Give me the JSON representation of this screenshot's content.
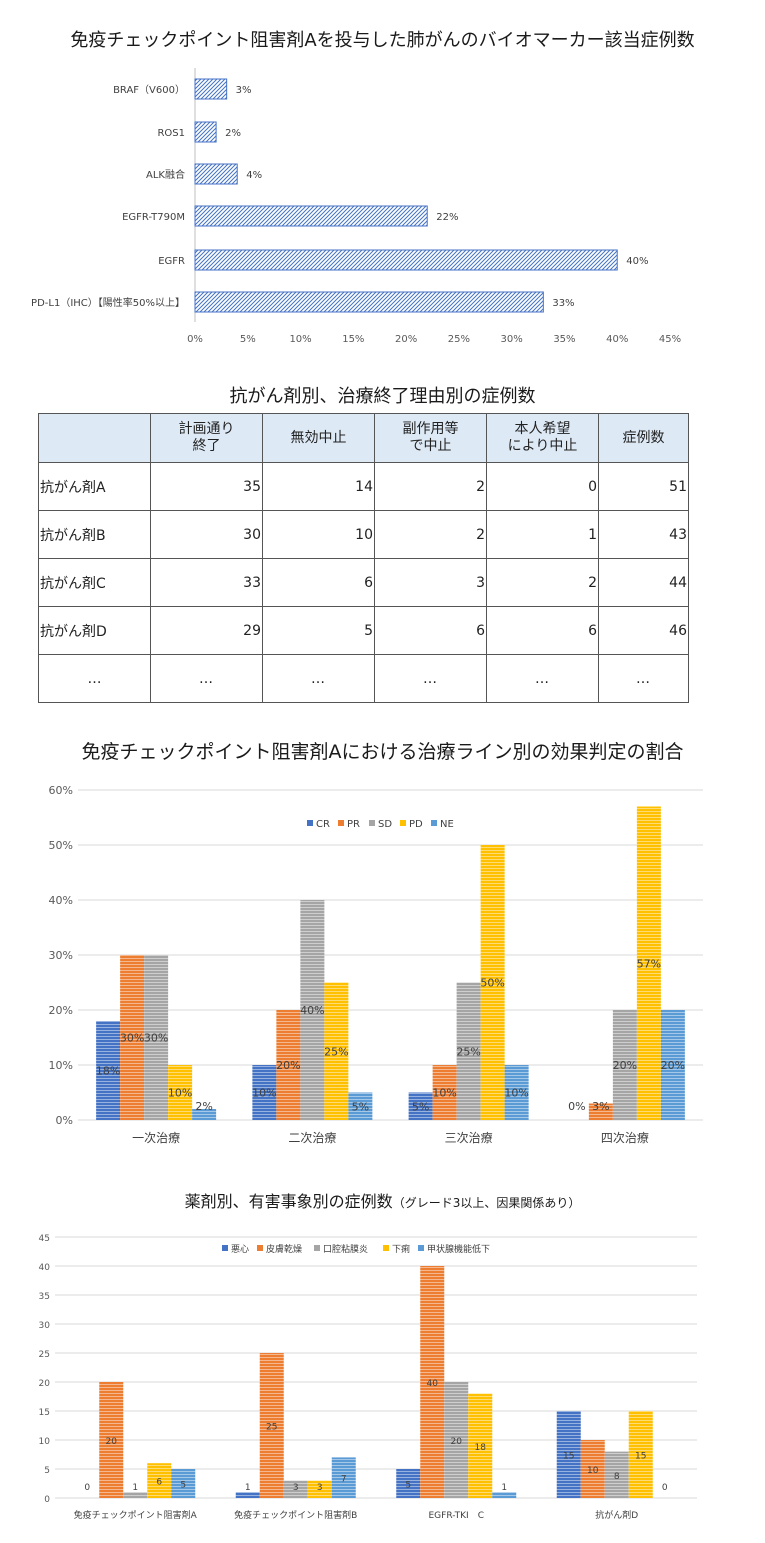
{
  "chart_data": [
    {
      "type": "bar",
      "orientation": "horizontal",
      "title": "免疫チェックポイント阻害剤Aを投与した肺がんのバイオマーカー該当症例数",
      "categories": [
        "BRAF（V600）",
        "ROS1",
        "ALK融合",
        "EGFR-T790M",
        "EGFR",
        "PD-L1（IHC）【陽性率50%以上】"
      ],
      "values": [
        3,
        2,
        4,
        22,
        40,
        33
      ],
      "value_labels": [
        "3%",
        "2%",
        "4%",
        "22%",
        "40%",
        "33%"
      ],
      "xlim": [
        0,
        45
      ],
      "x_ticks": [
        "0%",
        "5%",
        "10%",
        "15%",
        "20%",
        "25%",
        "30%",
        "35%",
        "40%",
        "45%"
      ],
      "bar_color": "#4472c4",
      "fill": "hatched",
      "grid": true
    },
    {
      "type": "table",
      "title": "抗がん剤別、治療終了理由別の症例数",
      "headers": [
        "",
        "計画通り\n終了",
        "無効中止",
        "副作用等\nで中止",
        "本人希望\nにより中止",
        "症例数"
      ],
      "rows": [
        [
          "抗がん剤A",
          "35",
          "14",
          "2",
          "0",
          "51"
        ],
        [
          "抗がん剤B",
          "30",
          "10",
          "2",
          "1",
          "43"
        ],
        [
          "抗がん剤C",
          "33",
          "6",
          "3",
          "2",
          "44"
        ],
        [
          "抗がん剤D",
          "29",
          "5",
          "6",
          "6",
          "46"
        ],
        [
          "…",
          "…",
          "…",
          "…",
          "…",
          "…"
        ]
      ],
      "header_color": "#dde9f5"
    },
    {
      "type": "bar",
      "title": "免疫チェックポイント阻害剤Aにおける治療ライン別の効果判定の割合",
      "categories": [
        "一次治療",
        "二次治療",
        "三次治療",
        "四次治療"
      ],
      "series": [
        {
          "name": "CR",
          "color": "#4472c4",
          "values": [
            18,
            10,
            5,
            0
          ],
          "labels": [
            "18%",
            "10%",
            "5%",
            "0%"
          ]
        },
        {
          "name": "PR",
          "color": "#ed7d31",
          "values": [
            30,
            20,
            10,
            3
          ],
          "labels": [
            "30%",
            "20%",
            "10%",
            "3%"
          ]
        },
        {
          "name": "SD",
          "color": "#a5a5a5",
          "values": [
            30,
            40,
            25,
            20
          ],
          "labels": [
            "30%",
            "40%",
            "25%",
            "20%"
          ]
        },
        {
          "name": "PD",
          "color": "#ffc000",
          "values": [
            10,
            25,
            50,
            57
          ],
          "labels": [
            "10%",
            "25%",
            "50%",
            "57%"
          ]
        },
        {
          "name": "NE",
          "color": "#5b9bd5",
          "values": [
            2,
            5,
            10,
            20
          ],
          "labels": [
            "2%",
            "5%",
            "10%",
            "20%"
          ]
        }
      ],
      "ylim": [
        0,
        60
      ],
      "y_ticks": [
        "0%",
        "10%",
        "20%",
        "30%",
        "40%",
        "50%",
        "60%"
      ],
      "legend": "top-center",
      "grid": true,
      "fill": "striped"
    },
    {
      "type": "bar",
      "title": "薬剤別、有害事象別の症例数",
      "subtitle": "（グレード3以上、因果関係あり）",
      "categories": [
        "免疫チェックポイント阻害剤A",
        "免疫チェックポイント阻害剤B",
        "EGFR-TKI　C",
        "抗がん剤D"
      ],
      "series": [
        {
          "name": "悪心",
          "color": "#4472c4",
          "values": [
            0,
            1,
            5,
            15
          ],
          "labels": [
            "0",
            "1",
            "5",
            "15"
          ]
        },
        {
          "name": "皮膚乾燥",
          "color": "#ed7d31",
          "values": [
            20,
            25,
            40,
            10
          ],
          "labels": [
            "20",
            "25",
            "40",
            "10"
          ]
        },
        {
          "name": "口腔粘膜炎",
          "color": "#a5a5a5",
          "values": [
            1,
            3,
            20,
            8
          ],
          "labels": [
            "1",
            "3",
            "20",
            "8"
          ]
        },
        {
          "name": "下痢",
          "color": "#ffc000",
          "values": [
            6,
            3,
            18,
            15
          ],
          "labels": [
            "6",
            "3",
            "18",
            "15"
          ]
        },
        {
          "name": "甲状腺機能低下",
          "color": "#5b9bd5",
          "values": [
            5,
            7,
            1,
            0
          ],
          "labels": [
            "5",
            "7",
            "1",
            "0"
          ]
        }
      ],
      "ylim": [
        0,
        45
      ],
      "y_ticks": [
        "0",
        "5",
        "10",
        "15",
        "20",
        "25",
        "30",
        "35",
        "40",
        "45"
      ],
      "legend": "top-center",
      "grid": true,
      "fill": "striped"
    }
  ]
}
